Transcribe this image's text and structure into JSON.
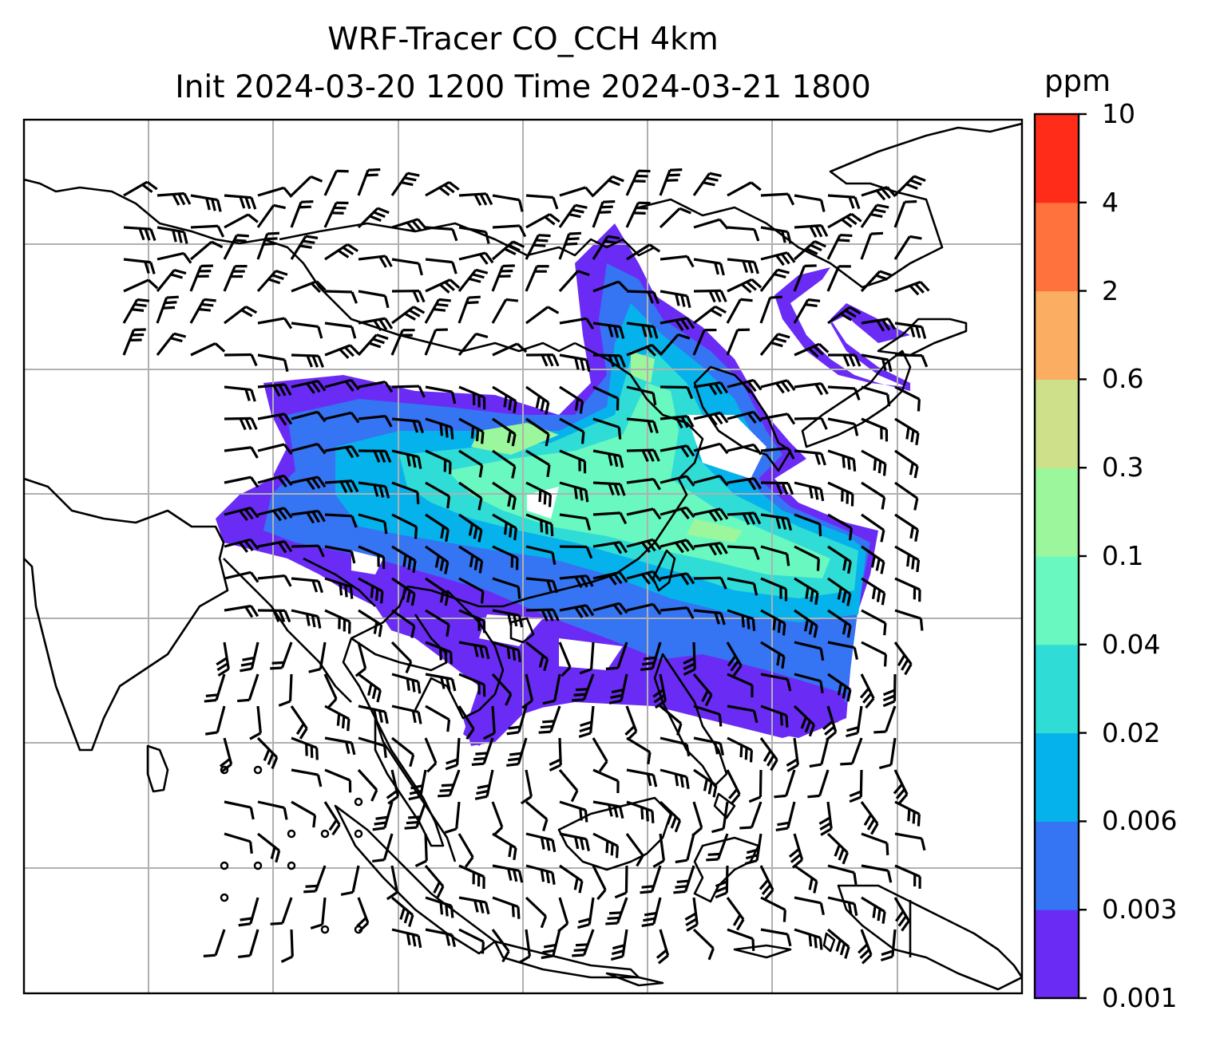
{
  "title": {
    "line1": "WRF-Tracer CO_CCH 4km",
    "line2": "Init 2024-03-20 1200 Time 2024-03-21 1800"
  },
  "colorbar": {
    "unit": "ppm",
    "levels": [
      "0.001",
      "0.003",
      "0.006",
      "0.02",
      "0.04",
      "0.1",
      "0.3",
      "0.6",
      "2",
      "4",
      "10"
    ],
    "colors": [
      "#6a2cf5",
      "#3574f2",
      "#05b2ec",
      "#30dcd6",
      "#69f8c0",
      "#9cf79c",
      "#cfe08a",
      "#fbad62",
      "#ff723d",
      "#ff2c1a"
    ]
  },
  "colors": {
    "gridline": "#b0b0b0",
    "coastline": "#000000",
    "wind_barb": "#000000"
  }
}
